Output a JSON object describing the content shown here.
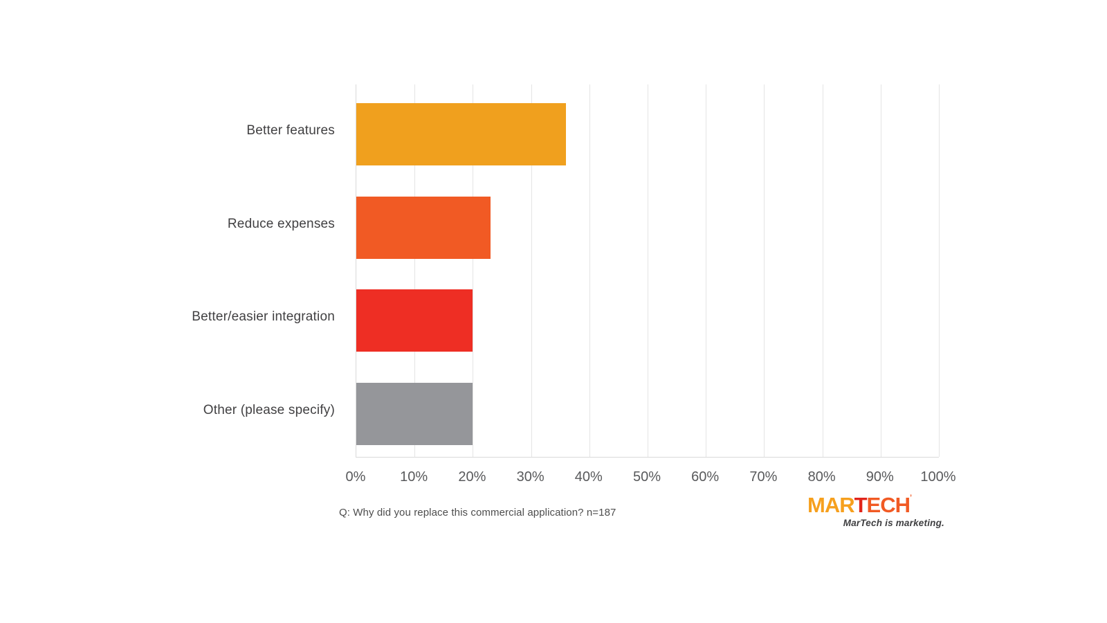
{
  "chart_data": {
    "type": "bar",
    "orientation": "horizontal",
    "title": "",
    "categories": [
      "Better features",
      "Reduce expenses",
      "Better/easier integration",
      "Other (please specify)"
    ],
    "values": [
      36,
      23,
      20,
      20
    ],
    "bar_colors": [
      "#f0a01e",
      "#f15a24",
      "#ee2e24",
      "#95969a"
    ],
    "xlim": [
      0,
      100
    ],
    "x_tick_values": [
      0,
      10,
      20,
      30,
      40,
      50,
      60,
      70,
      80,
      90,
      100
    ],
    "x_tick_labels": [
      "0%",
      "10%",
      "20%",
      "30%",
      "40%",
      "50%",
      "60%",
      "70%",
      "80%",
      "90%",
      "100%"
    ],
    "grid": true,
    "legend": "none",
    "caption": "Q: Why did you replace this commercial application? n=187"
  },
  "logo": {
    "mar": "MAR",
    "t": "T",
    "ech": "ECH",
    "mark": "’",
    "tagline": "MarTech is marketing."
  },
  "colors": {
    "background": "#ffffff",
    "gridline": "#e4e4e4",
    "axis": "#d9d9d9",
    "category_label": "#414042",
    "tick_label": "#58595b",
    "caption": "#4d4d4d",
    "logo_orange": "#f6a01e",
    "logo_red": "#e1251b",
    "logo_orange_red": "#f15a24",
    "tagline_color": "#3e3e40"
  }
}
